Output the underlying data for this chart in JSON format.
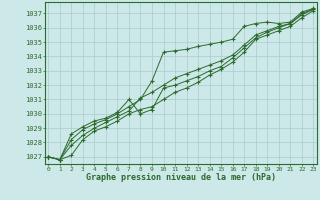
{
  "title": "Graphe pression niveau de la mer (hPa)",
  "hours": [
    0,
    1,
    2,
    3,
    4,
    5,
    6,
    7,
    8,
    9,
    10,
    11,
    12,
    13,
    14,
    15,
    16,
    17,
    18,
    19,
    20,
    21,
    22,
    23
  ],
  "ylim": [
    1026.5,
    1037.8
  ],
  "xlim": [
    -0.3,
    23.3
  ],
  "yticks": [
    1027,
    1028,
    1029,
    1030,
    1031,
    1032,
    1033,
    1034,
    1035,
    1036,
    1037
  ],
  "xticks": [
    0,
    1,
    2,
    3,
    4,
    5,
    6,
    7,
    8,
    9,
    10,
    11,
    12,
    13,
    14,
    15,
    16,
    17,
    18,
    19,
    20,
    21,
    22,
    23
  ],
  "bg_color": "#cce8e8",
  "grid_color": "#aacccc",
  "line_color": "#2d6a2d",
  "line1": [
    1027.0,
    1026.8,
    1027.1,
    1028.2,
    1028.8,
    1029.1,
    1029.5,
    1030.0,
    1030.3,
    1030.5,
    1031.0,
    1031.5,
    1031.8,
    1032.2,
    1032.7,
    1033.1,
    1033.6,
    1034.3,
    1035.2,
    1035.5,
    1035.8,
    1036.1,
    1036.7,
    1037.2
  ],
  "line2": [
    1027.0,
    1026.8,
    1027.8,
    1028.5,
    1029.0,
    1029.4,
    1029.8,
    1030.2,
    1031.1,
    1031.5,
    1032.0,
    1032.5,
    1032.8,
    1033.1,
    1033.4,
    1033.7,
    1034.1,
    1034.8,
    1035.5,
    1035.8,
    1036.1,
    1036.3,
    1036.9,
    1037.3
  ],
  "line3": [
    1027.0,
    1026.8,
    1028.2,
    1028.9,
    1029.3,
    1029.6,
    1030.0,
    1030.5,
    1031.0,
    1032.3,
    1034.3,
    1034.4,
    1034.5,
    1034.7,
    1034.85,
    1035.0,
    1035.2,
    1036.1,
    1036.3,
    1036.4,
    1036.3,
    1036.4,
    1037.1,
    1037.35
  ],
  "line4": [
    1027.0,
    1026.8,
    1028.6,
    1029.1,
    1029.5,
    1029.7,
    1030.1,
    1031.0,
    1030.0,
    1030.3,
    1031.8,
    1032.0,
    1032.3,
    1032.6,
    1033.0,
    1033.3,
    1033.9,
    1034.6,
    1035.3,
    1035.7,
    1036.0,
    1036.3,
    1037.0,
    1037.3
  ]
}
